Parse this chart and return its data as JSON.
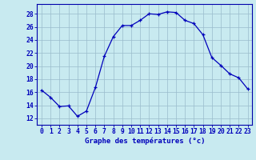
{
  "hours": [
    0,
    1,
    2,
    3,
    4,
    5,
    6,
    7,
    8,
    9,
    10,
    11,
    12,
    13,
    14,
    15,
    16,
    17,
    18,
    19,
    20,
    21,
    22,
    23
  ],
  "temperatures": [
    16.3,
    15.2,
    13.8,
    13.9,
    12.3,
    13.1,
    16.7,
    21.5,
    24.5,
    26.2,
    26.2,
    27.0,
    28.0,
    27.9,
    28.3,
    28.2,
    27.0,
    26.5,
    24.8,
    21.3,
    20.1,
    18.8,
    18.2,
    16.5
  ],
  "xlim": [
    -0.5,
    23.5
  ],
  "ylim": [
    11.0,
    29.5
  ],
  "yticks": [
    12,
    14,
    16,
    18,
    20,
    22,
    24,
    26,
    28
  ],
  "xticks": [
    0,
    1,
    2,
    3,
    4,
    5,
    6,
    7,
    8,
    9,
    10,
    11,
    12,
    13,
    14,
    15,
    16,
    17,
    18,
    19,
    20,
    21,
    22,
    23
  ],
  "xlabel": "Graphe des températures (°c)",
  "line_color": "#0000bb",
  "marker": "+",
  "background_color": "#c8eaf0",
  "grid_color": "#99bbcc",
  "axis_color": "#0000aa",
  "text_color": "#0000bb",
  "label_fontsize": 6.5,
  "tick_fontsize": 5.8
}
